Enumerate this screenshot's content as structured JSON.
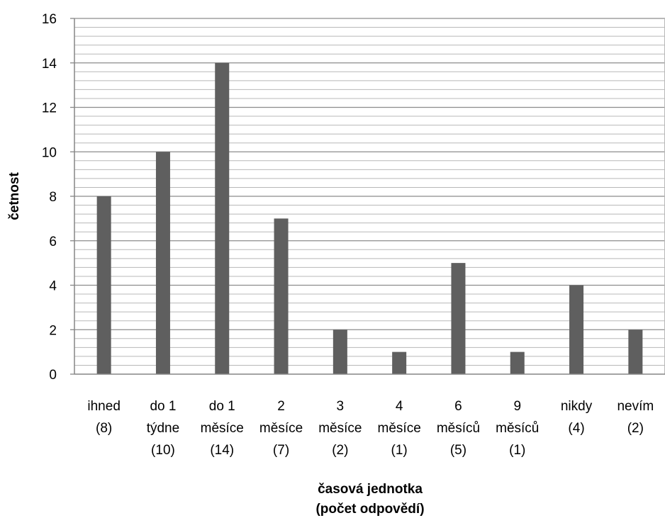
{
  "chart_data": {
    "type": "bar",
    "categories": [
      [
        "ihned",
        "(8)"
      ],
      [
        "do 1",
        "týdne",
        "(10)"
      ],
      [
        "do 1",
        "měsíce",
        "(14)"
      ],
      [
        "2",
        "měsíce",
        "(7)"
      ],
      [
        "3",
        "měsíce",
        "(2)"
      ],
      [
        "4",
        "měsíce",
        "(1)"
      ],
      [
        "6",
        "měsíců",
        "(5)"
      ],
      [
        "9",
        "měsíců",
        "(1)"
      ],
      [
        "nikdy",
        "(4)"
      ],
      [
        "nevím",
        "(2)"
      ]
    ],
    "values": [
      8,
      10,
      14,
      7,
      2,
      1,
      5,
      1,
      4,
      2
    ],
    "ylabel": "četnost",
    "xlabel": [
      "časová jednotka",
      "(počet odpovědí)"
    ],
    "ylim": [
      0,
      16
    ],
    "yticks": [
      0,
      2,
      4,
      6,
      8,
      10,
      12,
      14,
      16
    ],
    "grid": "horizontal major and minor",
    "bar_color": "#5f5f5f",
    "grid_color": "#a6a6a6"
  }
}
